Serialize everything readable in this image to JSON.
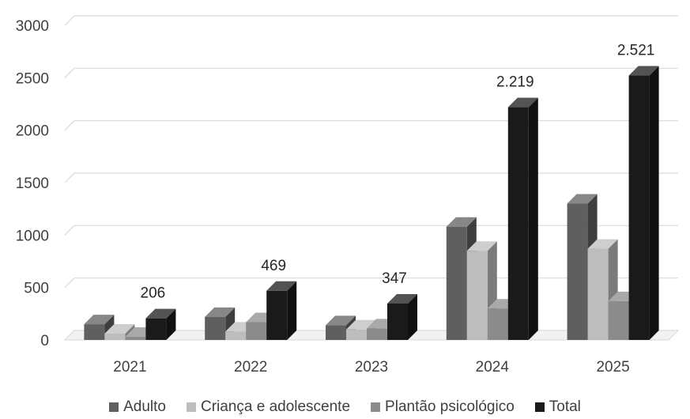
{
  "chart_data": {
    "type": "bar",
    "categories": [
      "2021",
      "2022",
      "2023",
      "2024",
      "2025"
    ],
    "series": [
      {
        "name": "Adulto",
        "values": [
          150,
          220,
          140,
          1080,
          1300
        ],
        "color": "#5f5f5f"
      },
      {
        "name": "Criança e adolescente",
        "values": [
          60,
          80,
          100,
          850,
          870
        ],
        "color": "#bdbdbd"
      },
      {
        "name": "Plantão psicológico",
        "values": [
          30,
          170,
          110,
          300,
          370
        ],
        "color": "#8c8c8c"
      },
      {
        "name": "Total",
        "values": [
          206,
          469,
          347,
          2219,
          2521
        ],
        "color": "#1a1a1a"
      }
    ],
    "data_labels": {
      "series": "Total",
      "labels": [
        "206",
        "469",
        "347",
        "2.219",
        "2.521"
      ]
    },
    "ylim": [
      0,
      3000
    ],
    "yticks": [
      0,
      500,
      1000,
      1500,
      2000,
      2500,
      3000
    ],
    "title": "",
    "xlabel": "",
    "ylabel": "",
    "grid": true,
    "legend_position": "bottom",
    "style": "3d-clustered"
  }
}
